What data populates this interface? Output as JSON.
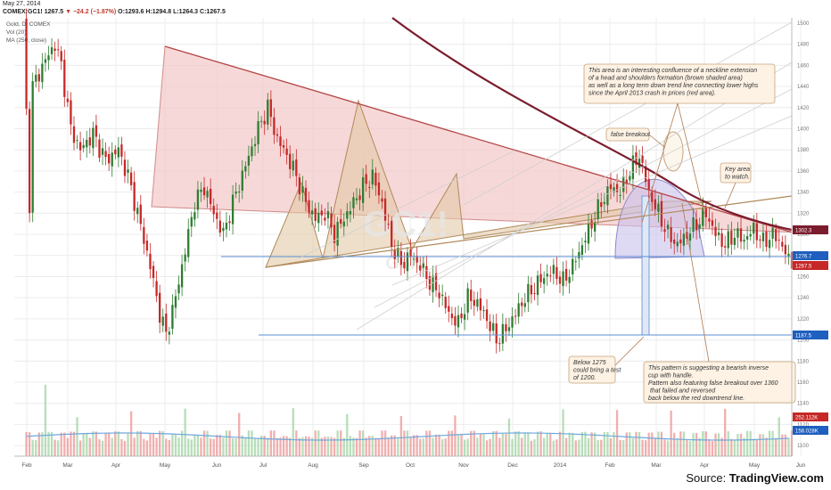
{
  "header": {
    "date": "May 27, 2014",
    "symbol": "COMEX:GC1!",
    "last": "1267.5",
    "change": "−24.2 (−1.87%)",
    "o": "O:1293.6",
    "h": "H:1294.8",
    "l": "L:1264.3",
    "c": "C:1267.5"
  },
  "indicators": [
    "Gold, D, COMEX",
    "Vol (20)",
    "MA (250, close)"
  ],
  "watermark": {
    "main": "GC1!",
    "sub": "Gold"
  },
  "source": {
    "prefix": "Source: ",
    "brand": "TradingView.com"
  },
  "colors": {
    "up": "#2e7d32",
    "down": "#c62828",
    "ma250": "#7b1c2e",
    "red_area": "#f4c7c7",
    "hs_area": "#e3c9a8",
    "cup_area": "#c9c2ec",
    "grid": "#ececec",
    "note_bg": "#fdf2e4",
    "note_border": "#c8a37a"
  },
  "chart_data": {
    "type": "candlestick",
    "title": "Gold, D, COMEX",
    "ylim": [
      1090,
      1505
    ],
    "y_ticks": [
      1100,
      1120,
      1140,
      1160,
      1180,
      1200,
      1220,
      1240,
      1260,
      1280,
      1300,
      1320,
      1340,
      1360,
      1380,
      1400,
      1420,
      1440,
      1460,
      1480,
      1500
    ],
    "x_labels": [
      "Feb",
      "Mar",
      "Apr",
      "May",
      "Jun",
      "Jul",
      "Aug",
      "Sep",
      "Oct",
      "Nov",
      "Dec",
      "2014",
      "Feb",
      "Mar",
      "Apr",
      "May",
      "Jun"
    ],
    "price_path": [
      [
        0,
        1500
      ],
      [
        2,
        1330
      ],
      [
        3,
        1440
      ],
      [
        7,
        1465
      ],
      [
        10,
        1480
      ],
      [
        12,
        1460
      ],
      [
        15,
        1400
      ],
      [
        18,
        1380
      ],
      [
        22,
        1395
      ],
      [
        26,
        1370
      ],
      [
        30,
        1380
      ],
      [
        33,
        1355
      ],
      [
        36,
        1320
      ],
      [
        40,
        1270
      ],
      [
        43,
        1225
      ],
      [
        45,
        1205
      ],
      [
        48,
        1240
      ],
      [
        51,
        1285
      ],
      [
        54,
        1330
      ],
      [
        57,
        1345
      ],
      [
        60,
        1320
      ],
      [
        63,
        1300
      ],
      [
        66,
        1330
      ],
      [
        70,
        1365
      ],
      [
        74,
        1400
      ],
      [
        77,
        1420
      ],
      [
        80,
        1390
      ],
      [
        83,
        1375
      ],
      [
        86,
        1355
      ],
      [
        89,
        1330
      ],
      [
        92,
        1315
      ],
      [
        95,
        1320
      ],
      [
        98,
        1300
      ],
      [
        101,
        1315
      ],
      [
        104,
        1330
      ],
      [
        107,
        1345
      ],
      [
        110,
        1355
      ],
      [
        113,
        1330
      ],
      [
        116,
        1290
      ],
      [
        119,
        1272
      ],
      [
        122,
        1280
      ],
      [
        125,
        1270
      ],
      [
        128,
        1255
      ],
      [
        131,
        1245
      ],
      [
        134,
        1225
      ],
      [
        137,
        1215
      ],
      [
        140,
        1240
      ],
      [
        143,
        1235
      ],
      [
        146,
        1220
      ],
      [
        149,
        1200
      ],
      [
        152,
        1210
      ],
      [
        155,
        1225
      ],
      [
        158,
        1240
      ],
      [
        161,
        1250
      ],
      [
        164,
        1260
      ],
      [
        167,
        1265
      ],
      [
        170,
        1255
      ],
      [
        173,
        1270
      ],
      [
        176,
        1290
      ],
      [
        179,
        1310
      ],
      [
        182,
        1330
      ],
      [
        185,
        1345
      ],
      [
        188,
        1340
      ],
      [
        191,
        1360
      ],
      [
        194,
        1375
      ],
      [
        197,
        1340
      ],
      [
        200,
        1320
      ],
      [
        203,
        1300
      ],
      [
        206,
        1290
      ],
      [
        209,
        1300
      ],
      [
        212,
        1310
      ],
      [
        215,
        1320
      ],
      [
        218,
        1300
      ],
      [
        221,
        1290
      ],
      [
        224,
        1300
      ],
      [
        227,
        1295
      ],
      [
        230,
        1305
      ],
      [
        233,
        1292
      ],
      [
        236,
        1300
      ],
      [
        239,
        1290
      ],
      [
        242,
        1267
      ]
    ],
    "last_price": 1267.5,
    "price_labels": [
      "1302.3",
      "1276.7",
      "1267.5",
      "1187.5"
    ],
    "volume_labels": [
      "252.112K",
      "158.028K"
    ],
    "annotations": [
      "This area is an interesting confluence of a neckline extension\nof a head and shoulders formation (brown shaded area)\nas well as a long term down trend line connecting lower highs\nsince the April 2013 crash in prices (red area).",
      "false breakout",
      "Key area\nto watch.",
      "Below 1275\ncould bring a test\nof 1200.",
      "This pattern is suggesting a bearish inverse\ncup with handle.\nPattern also featuring false breakout over 1360\n  that failed and reversed\nback below the red downtrend line."
    ]
  }
}
